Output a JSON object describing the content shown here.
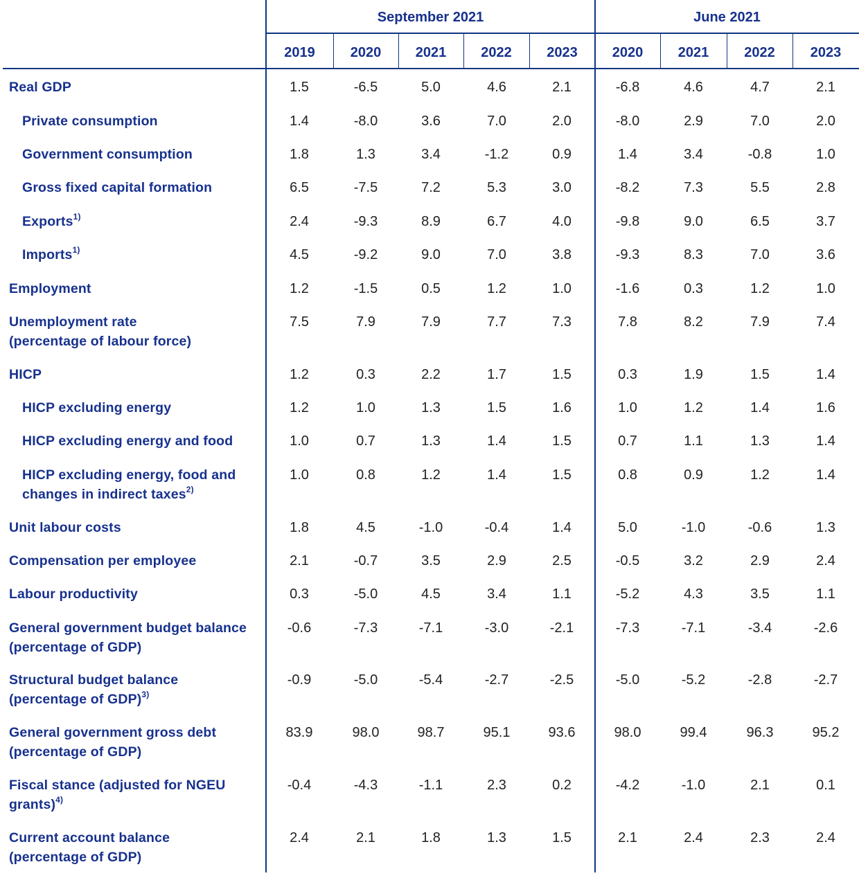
{
  "column_groups": [
    {
      "label": "September 2021",
      "years": [
        "2019",
        "2020",
        "2021",
        "2022",
        "2023"
      ]
    },
    {
      "label": "June 2021",
      "years": [
        "2020",
        "2021",
        "2022",
        "2023"
      ]
    }
  ],
  "rows": [
    {
      "label": "Real GDP",
      "indent": false,
      "values": [
        "1.5",
        "-6.5",
        "5.0",
        "4.6",
        "2.1",
        "-6.8",
        "4.6",
        "4.7",
        "2.1"
      ]
    },
    {
      "label": "Private consumption",
      "indent": true,
      "values": [
        "1.4",
        "-8.0",
        "3.6",
        "7.0",
        "2.0",
        "-8.0",
        "2.9",
        "7.0",
        "2.0"
      ]
    },
    {
      "label": "Government consumption",
      "indent": true,
      "values": [
        "1.8",
        "1.3",
        "3.4",
        "-1.2",
        "0.9",
        "1.4",
        "3.4",
        "-0.8",
        "1.0"
      ]
    },
    {
      "label": "Gross fixed capital formation",
      "indent": true,
      "values": [
        "6.5",
        "-7.5",
        "7.2",
        "5.3",
        "3.0",
        "-8.2",
        "7.3",
        "5.5",
        "2.8"
      ]
    },
    {
      "label": "Exports",
      "sup": "1)",
      "indent": true,
      "values": [
        "2.4",
        "-9.3",
        "8.9",
        "6.7",
        "4.0",
        "-9.8",
        "9.0",
        "6.5",
        "3.7"
      ]
    },
    {
      "label": "Imports",
      "sup": "1)",
      "indent": true,
      "values": [
        "4.5",
        "-9.2",
        "9.0",
        "7.0",
        "3.8",
        "-9.3",
        "8.3",
        "7.0",
        "3.6"
      ]
    },
    {
      "label": "Employment",
      "indent": false,
      "values": [
        "1.2",
        "-1.5",
        "0.5",
        "1.2",
        "1.0",
        "-1.6",
        "0.3",
        "1.2",
        "1.0"
      ]
    },
    {
      "label": "Unemployment rate",
      "label2": "(percentage of labour force)",
      "indent": false,
      "values": [
        "7.5",
        "7.9",
        "7.9",
        "7.7",
        "7.3",
        "7.8",
        "8.2",
        "7.9",
        "7.4"
      ]
    },
    {
      "label": "HICP",
      "indent": false,
      "values": [
        "1.2",
        "0.3",
        "2.2",
        "1.7",
        "1.5",
        "0.3",
        "1.9",
        "1.5",
        "1.4"
      ]
    },
    {
      "label": "HICP excluding energy",
      "indent": true,
      "values": [
        "1.2",
        "1.0",
        "1.3",
        "1.5",
        "1.6",
        "1.0",
        "1.2",
        "1.4",
        "1.6"
      ]
    },
    {
      "label": "HICP excluding energy and food",
      "indent": true,
      "values": [
        "1.0",
        "0.7",
        "1.3",
        "1.4",
        "1.5",
        "0.7",
        "1.1",
        "1.3",
        "1.4"
      ]
    },
    {
      "label": "HICP excluding energy, food and",
      "label2": "changes in indirect taxes",
      "sup": "2)",
      "indent": true,
      "values": [
        "1.0",
        "0.8",
        "1.2",
        "1.4",
        "1.5",
        "0.8",
        "0.9",
        "1.2",
        "1.4"
      ]
    },
    {
      "label": "Unit labour costs",
      "indent": false,
      "values": [
        "1.8",
        "4.5",
        "-1.0",
        "-0.4",
        "1.4",
        "5.0",
        "-1.0",
        "-0.6",
        "1.3"
      ]
    },
    {
      "label": "Compensation per employee",
      "indent": false,
      "values": [
        "2.1",
        "-0.7",
        "3.5",
        "2.9",
        "2.5",
        "-0.5",
        "3.2",
        "2.9",
        "2.4"
      ]
    },
    {
      "label": "Labour productivity",
      "indent": false,
      "values": [
        "0.3",
        "-5.0",
        "4.5",
        "3.4",
        "1.1",
        "-5.2",
        "4.3",
        "3.5",
        "1.1"
      ]
    },
    {
      "label": "General government budget balance",
      "label2": "(percentage of GDP)",
      "indent": false,
      "values": [
        "-0.6",
        "-7.3",
        "-7.1",
        "-3.0",
        "-2.1",
        "-7.3",
        "-7.1",
        "-3.4",
        "-2.6"
      ]
    },
    {
      "label": "Structural budget balance",
      "label2": "(percentage of GDP)",
      "sup": "3)",
      "indent": false,
      "values": [
        "-0.9",
        "-5.0",
        "-5.4",
        "-2.7",
        "-2.5",
        "-5.0",
        "-5.2",
        "-2.8",
        "-2.7"
      ]
    },
    {
      "label": "General government gross debt",
      "label2": "(percentage of GDP)",
      "indent": false,
      "values": [
        "83.9",
        "98.0",
        "98.7",
        "95.1",
        "93.6",
        "98.0",
        "99.4",
        "96.3",
        "95.2"
      ]
    },
    {
      "label": "Fiscal stance (adjusted for NGEU",
      "label2": "grants)",
      "sup": "4)",
      "indent": false,
      "values": [
        "-0.4",
        "-4.3",
        "-1.1",
        "2.3",
        "0.2",
        "-4.2",
        "-1.0",
        "2.1",
        "0.1"
      ]
    },
    {
      "label": "Current account balance",
      "label2": "(percentage of GDP)",
      "indent": false,
      "values": [
        "2.4",
        "2.1",
        "1.8",
        "1.3",
        "1.5",
        "2.1",
        "2.4",
        "2.3",
        "2.4"
      ]
    }
  ],
  "colors": {
    "header_text": "#17318e",
    "rule": "#0d3582",
    "value_text": "#222222"
  }
}
